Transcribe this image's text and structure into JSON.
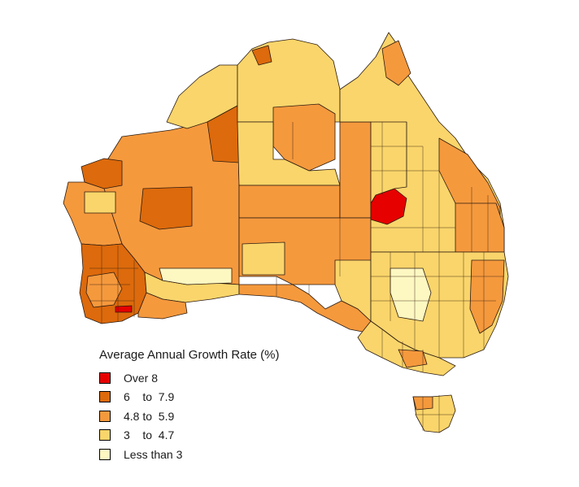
{
  "legend": {
    "title": "Average Annual Growth Rate (%)",
    "items": [
      {
        "label": "Over 8",
        "color": "#e60000"
      },
      {
        "label": "6    to  7.9",
        "color": "#dd6a0c"
      },
      {
        "label": "4.8 to  5.9",
        "color": "#f5993d"
      },
      {
        "label": "3    to  4.7",
        "color": "#fad56b"
      },
      {
        "label": "Less than 3",
        "color": "#fdf8c2"
      }
    ]
  },
  "colors": {
    "over8": "#e60000",
    "r6to79": "#dd6a0c",
    "r48to59": "#f5993d",
    "r3to47": "#fad56b",
    "under3": "#fdf8c2",
    "border": "#2a1a10"
  }
}
